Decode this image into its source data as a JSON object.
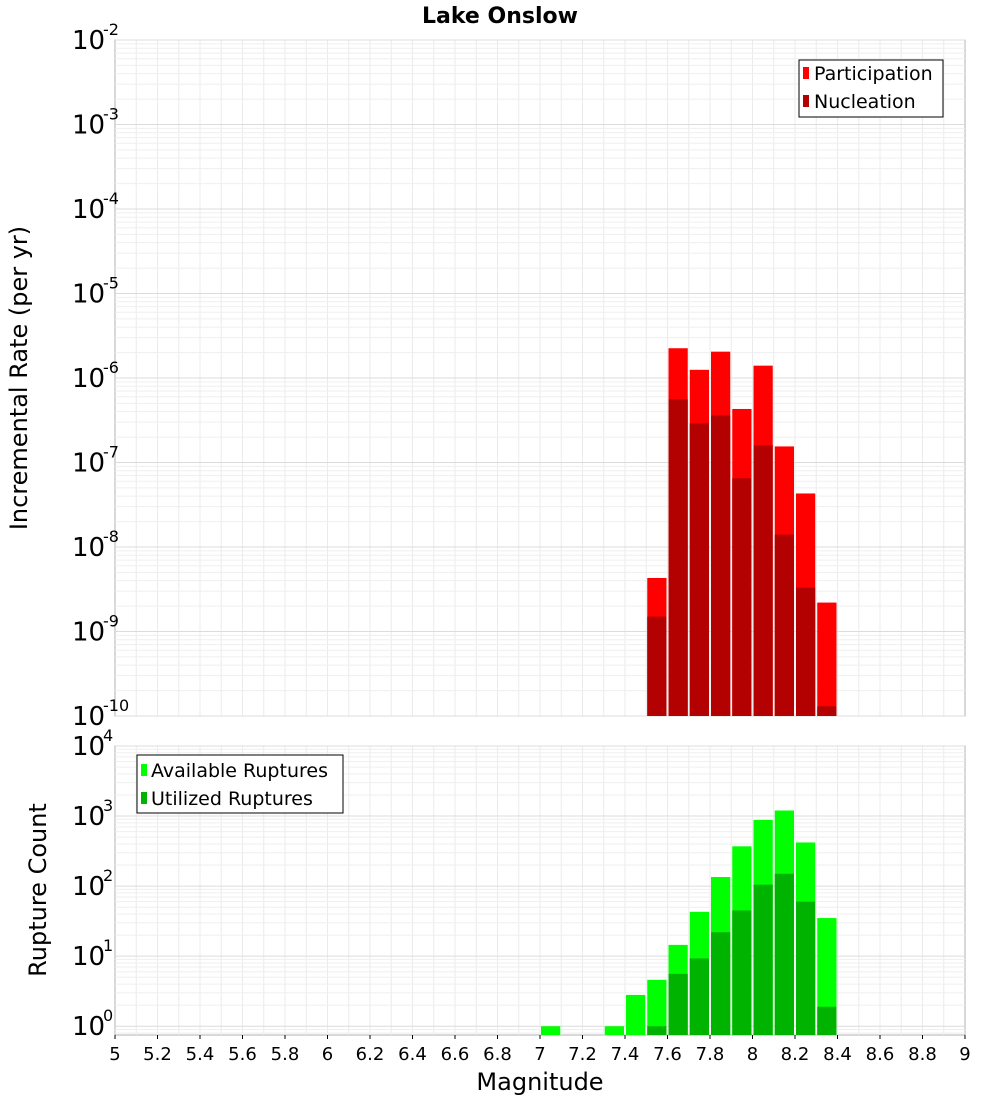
{
  "chart_data": [
    {
      "type": "bar",
      "title": "Lake Onslow",
      "ylabel": "Incremental Rate (per yr)",
      "yscale": "log",
      "ylim": [
        1e-10,
        0.01
      ],
      "ytick_exponents": [
        -2,
        -3,
        -4,
        -5,
        -6,
        -7,
        -8,
        -9,
        -10
      ],
      "xlim": [
        5,
        9
      ],
      "bar_width": 0.1,
      "legend": {
        "placement": "top-right",
        "entries": [
          "Participation",
          "Nucleation"
        ]
      },
      "grid": true,
      "series": [
        {
          "name": "Participation",
          "color": "#ff0000",
          "x": [
            7.55,
            7.65,
            7.75,
            7.85,
            7.95,
            8.05,
            8.15,
            8.25,
            8.35
          ],
          "values": [
            4.3e-09,
            2.25e-06,
            1.25e-06,
            2.05e-06,
            4.3e-07,
            1.4e-06,
            1.55e-07,
            4.3e-08,
            2.2e-09
          ]
        },
        {
          "name": "Nucleation",
          "color": "#b30000",
          "x": [
            7.55,
            7.65,
            7.75,
            7.85,
            7.95,
            8.05,
            8.15,
            8.25,
            8.35
          ],
          "values": [
            1.5e-09,
            5.6e-07,
            2.9e-07,
            3.6e-07,
            6.5e-08,
            1.6e-07,
            1.4e-08,
            3.3e-09,
            1.3e-10
          ]
        }
      ]
    },
    {
      "type": "bar",
      "ylabel": "Rupture Count",
      "xlabel": "Magnitude",
      "yscale": "log",
      "ylim": [
        0.75,
        10000
      ],
      "ytick_exponents": [
        4,
        3,
        2,
        1,
        0
      ],
      "xlim": [
        5,
        9
      ],
      "bar_width": 0.1,
      "xticks": [
        "5",
        "5.2",
        "5.4",
        "5.6",
        "5.8",
        "6",
        "6.2",
        "6.4",
        "6.6",
        "6.8",
        "7",
        "7.2",
        "7.4",
        "7.6",
        "7.8",
        "8",
        "8.2",
        "8.4",
        "8.6",
        "8.8",
        "9"
      ],
      "legend": {
        "placement": "top-left",
        "entries": [
          "Available Ruptures",
          "Utilized Ruptures"
        ]
      },
      "grid": true,
      "series": [
        {
          "name": "Available Ruptures",
          "color": "#00ff00",
          "x": [
            7.05,
            7.35,
            7.45,
            7.55,
            7.65,
            7.75,
            7.85,
            7.95,
            8.05,
            8.15,
            8.25,
            8.35
          ],
          "values": [
            1,
            1,
            2.8,
            4.6,
            14.5,
            43,
            135,
            370,
            880,
            1200,
            420,
            35
          ]
        },
        {
          "name": "Utilized Ruptures",
          "color": "#00b300",
          "x": [
            7.55,
            7.65,
            7.75,
            7.85,
            7.95,
            8.05,
            8.15,
            8.25,
            8.35
          ],
          "values": [
            1,
            5.6,
            9.3,
            22,
            45,
            105,
            150,
            60,
            1.9
          ]
        }
      ]
    }
  ]
}
